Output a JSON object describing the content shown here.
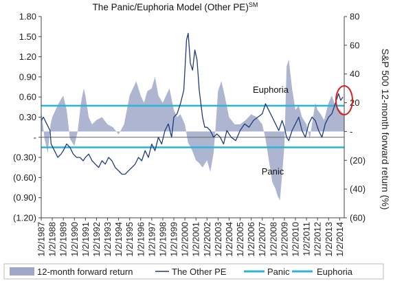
{
  "chart_data": {
    "type": "area",
    "title": "The Panic/Euphoria Model (Other PE)",
    "title_superscript": "SM",
    "ylabel_right": "S&P 500 12-month forward return (%)",
    "left_axis": {
      "range": [
        -1.2,
        1.8
      ],
      "ticks": [
        1.8,
        1.5,
        1.2,
        0.9,
        0.6,
        0.3,
        0,
        -0.3,
        -0.6,
        -0.9,
        -1.2
      ],
      "tick_labels": [
        "1.80",
        "1.50",
        "1.20",
        "0.90",
        "0.60",
        "0.30",
        "-",
        "(0.30)",
        "(0.60)",
        "(0.90)",
        "(1.20)"
      ]
    },
    "right_axis": {
      "range": [
        -60,
        80
      ],
      "ticks": [
        80,
        60,
        40,
        20,
        0,
        -20,
        -40,
        -60
      ],
      "tick_labels": [
        "80",
        "60",
        "40",
        "20",
        "-",
        "(20)",
        "(40)",
        "(60)"
      ]
    },
    "x_axis": {
      "range": [
        "1987-01-02",
        "2014-06-01"
      ],
      "tick_labels": [
        "1/2/1987",
        "1/2/1988",
        "1/2/1989",
        "1/2/1990",
        "1/2/1991",
        "1/2/1992",
        "1/2/1993",
        "1/2/1994",
        "1/2/1995",
        "1/2/1996",
        "1/2/1997",
        "1/2/1998",
        "1/2/1999",
        "1/2/2000",
        "1/2/2001",
        "1/2/2002",
        "1/2/2003",
        "1/2/2004",
        "1/2/2005",
        "1/2/2006",
        "1/2/2007",
        "1/2/2008",
        "1/2/2009",
        "1/2/2010",
        "1/2/2011",
        "1/2/2012",
        "1/2/2013",
        "1/2/2014"
      ]
    },
    "thresholds": {
      "panic": -0.15,
      "euphoria": 0.47
    },
    "annotations": {
      "euphoria_label": "Euphoria",
      "panic_label": "Panic"
    },
    "legend": {
      "placement": "bottom",
      "items": [
        {
          "label": "12-month forward return",
          "kind": "area",
          "color": "#9fa8c8"
        },
        {
          "label": "The Other PE",
          "kind": "line",
          "color": "#1f3a7a"
        },
        {
          "label": "Panic",
          "kind": "line",
          "color": "#2ab4d8"
        },
        {
          "label": "Euphoria",
          "kind": "line",
          "color": "#2ab4d8"
        }
      ]
    },
    "series": [
      {
        "name": "12-month forward return",
        "axis": "right",
        "x": [
          1987.0,
          1987.3,
          1987.6,
          1987.85,
          1988.0,
          1988.3,
          1988.6,
          1989.0,
          1989.3,
          1989.6,
          1990.0,
          1990.3,
          1990.6,
          1990.85,
          1991.0,
          1991.3,
          1991.6,
          1992.0,
          1992.5,
          1993.0,
          1993.5,
          1994.0,
          1994.5,
          1995.0,
          1995.3,
          1995.6,
          1996.0,
          1996.3,
          1996.6,
          1997.0,
          1997.3,
          1997.6,
          1998.0,
          1998.3,
          1998.6,
          1999.0,
          1999.3,
          1999.6,
          2000.0,
          2000.3,
          2000.6,
          2001.0,
          2001.3,
          2001.6,
          2002.0,
          2002.3,
          2002.6,
          2002.8,
          2003.0,
          2003.3,
          2003.6,
          2004.0,
          2004.5,
          2005.0,
          2005.5,
          2006.0,
          2006.5,
          2007.0,
          2007.3,
          2007.6,
          2007.9,
          2008.2,
          2008.4,
          2008.6,
          2008.8,
          2009.0,
          2009.2,
          2009.4,
          2009.7,
          2010.0,
          2010.3,
          2010.6,
          2011.0,
          2011.3,
          2011.6,
          2011.8,
          2012.0,
          2012.3,
          2012.6,
          2013.0,
          2013.3,
          2013.6,
          2014.0,
          2014.4
        ],
        "values": [
          15,
          -5,
          -15,
          5,
          10,
          15,
          20,
          25,
          15,
          -5,
          -10,
          0,
          20,
          30,
          25,
          10,
          5,
          8,
          10,
          5,
          3,
          -2,
          5,
          25,
          30,
          35,
          25,
          20,
          28,
          30,
          38,
          25,
          20,
          25,
          30,
          15,
          10,
          12,
          5,
          -8,
          -12,
          -20,
          -22,
          -25,
          -20,
          -28,
          -15,
          5,
          28,
          35,
          25,
          10,
          5,
          5,
          8,
          12,
          10,
          5,
          -5,
          -20,
          -35,
          -40,
          -45,
          -48,
          -30,
          -10,
          45,
          50,
          30,
          15,
          18,
          10,
          5,
          -5,
          10,
          20,
          15,
          12,
          8,
          20,
          25,
          18,
          15,
          12
        ]
      },
      {
        "name": "The Other PE",
        "axis": "left",
        "x": [
          1987.0,
          1987.2,
          1987.5,
          1987.8,
          1987.9,
          1988.2,
          1988.5,
          1988.8,
          1989.0,
          1989.3,
          1989.6,
          1989.9,
          1990.2,
          1990.5,
          1990.8,
          1991.0,
          1991.3,
          1991.6,
          1991.9,
          1992.2,
          1992.5,
          1992.8,
          1993.1,
          1993.4,
          1993.7,
          1994.0,
          1994.3,
          1994.6,
          1994.9,
          1995.2,
          1995.5,
          1995.8,
          1996.1,
          1996.4,
          1996.7,
          1997.0,
          1997.3,
          1997.6,
          1997.9,
          1998.2,
          1998.5,
          1998.8,
          1999.0,
          1999.3,
          1999.6,
          1999.9,
          2000.0,
          2000.15,
          2000.3,
          2000.5,
          2000.7,
          2000.9,
          2001.1,
          2001.3,
          2001.6,
          2001.8,
          2002.0,
          2002.3,
          2002.6,
          2002.9,
          2003.2,
          2003.5,
          2003.8,
          2004.2,
          2004.6,
          2005.0,
          2005.4,
          2005.8,
          2006.2,
          2006.6,
          2007.0,
          2007.3,
          2007.6,
          2007.9,
          2008.2,
          2008.5,
          2008.8,
          2009.0,
          2009.2,
          2009.4,
          2009.7,
          2010.0,
          2010.3,
          2010.6,
          2010.9,
          2011.2,
          2011.5,
          2011.8,
          2012.1,
          2012.4,
          2012.7,
          2013.0,
          2013.3,
          2013.6,
          2013.9,
          2014.1,
          2014.3
        ],
        "values": [
          0.25,
          0.3,
          0.2,
          0.1,
          -0.1,
          -0.2,
          -0.3,
          -0.25,
          -0.2,
          -0.1,
          -0.15,
          -0.25,
          -0.3,
          -0.3,
          -0.35,
          -0.3,
          -0.25,
          -0.35,
          -0.4,
          -0.45,
          -0.35,
          -0.4,
          -0.3,
          -0.35,
          -0.45,
          -0.5,
          -0.55,
          -0.55,
          -0.5,
          -0.45,
          -0.4,
          -0.3,
          -0.35,
          -0.2,
          -0.3,
          -0.1,
          -0.2,
          0.0,
          -0.1,
          0.1,
          0.2,
          0.0,
          0.3,
          0.35,
          0.5,
          0.7,
          1.0,
          1.45,
          1.55,
          1.1,
          1.0,
          1.3,
          1.15,
          0.7,
          0.3,
          0.15,
          0.15,
          0.1,
          0.0,
          0.05,
          0.0,
          -0.1,
          0.1,
          0.0,
          -0.05,
          0.1,
          0.2,
          0.15,
          0.25,
          0.3,
          0.35,
          0.5,
          0.4,
          0.3,
          0.2,
          0.1,
          0.25,
          0.15,
          0.0,
          -0.05,
          0.1,
          0.2,
          0.3,
          0.1,
          0.0,
          0.2,
          0.3,
          0.25,
          0.1,
          0.0,
          0.2,
          0.3,
          0.35,
          0.5,
          0.65,
          0.55,
          0.6
        ]
      }
    ]
  }
}
